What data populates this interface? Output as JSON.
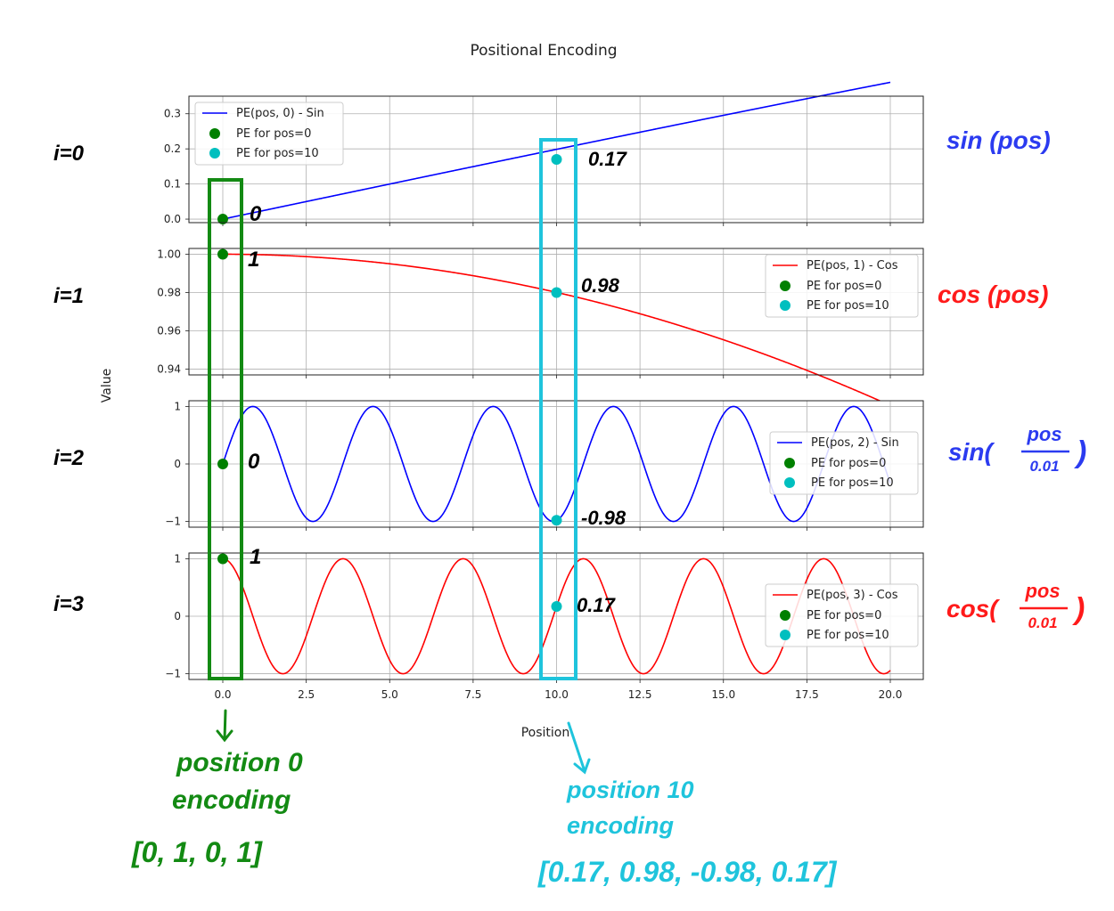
{
  "chart_data": {
    "type": "line",
    "title": "Positional Encoding",
    "xlabel": "Position",
    "ylabel": "Value",
    "grid": true,
    "x_range": [
      0,
      20
    ],
    "x_ticks": [
      "0.0",
      "2.5",
      "5.0",
      "7.5",
      "10.0",
      "12.5",
      "15.0",
      "17.5",
      "20.0"
    ],
    "marker_colors": {
      "pos0": "#008000",
      "pos10": "#00bfbf"
    },
    "panels": [
      {
        "series_name": "PE(pos, 0) - Sin",
        "function": "sin(pos/50)",
        "color": "#0000ff",
        "legend_position": "upper-left",
        "ylim": [
          -0.01,
          0.35
        ],
        "y_ticks": [
          "0.0",
          "0.1",
          "0.2",
          "0.3"
        ],
        "marker_labels": [
          "PE for pos=0",
          "PE for pos=10"
        ],
        "points": [
          {
            "x": 0,
            "y": 0
          },
          {
            "x": 10,
            "y": 0.17
          }
        ]
      },
      {
        "series_name": "PE(pos, 1) - Cos",
        "function": "cos(pos/50)",
        "color": "#ff0000",
        "legend_position": "upper-right",
        "ylim": [
          0.937,
          1.003
        ],
        "y_ticks": [
          "0.94",
          "0.96",
          "0.98",
          "1.00"
        ],
        "marker_labels": [
          "PE for pos=0",
          "PE for pos=10"
        ],
        "points": [
          {
            "x": 0,
            "y": 1
          },
          {
            "x": 10,
            "y": 0.98
          }
        ]
      },
      {
        "series_name": "PE(pos, 2) - Sin",
        "function": "sin(pos*1.745)",
        "color": "#0000ff",
        "legend_position": "right",
        "ylim": [
          -1.1,
          1.1
        ],
        "y_ticks": [
          "−1",
          "0",
          "1"
        ],
        "marker_labels": [
          "PE for pos=0",
          "PE for pos=10"
        ],
        "points": [
          {
            "x": 0,
            "y": 0
          },
          {
            "x": 10,
            "y": -0.98
          }
        ]
      },
      {
        "series_name": "PE(pos, 3) - Cos",
        "function": "cos(pos*1.745)",
        "color": "#ff0000",
        "legend_position": "right",
        "ylim": [
          -1.1,
          1.1
        ],
        "y_ticks": [
          "−1",
          "0",
          "1"
        ],
        "marker_labels": [
          "PE for pos=0",
          "PE for pos=10"
        ],
        "points": [
          {
            "x": 0,
            "y": 1
          },
          {
            "x": 10,
            "y": 0.17
          }
        ]
      }
    ]
  },
  "annotations": {
    "row_labels": [
      "i=0",
      "i=1",
      "i=2",
      "i=3"
    ],
    "point_labels": [
      {
        "pos0": "0",
        "pos10": "0.17"
      },
      {
        "pos0": "1",
        "pos10": "0.98"
      },
      {
        "pos0": "0",
        "pos10": "-0.98"
      },
      {
        "pos0": "1",
        "pos10": "0.17"
      }
    ],
    "formulas": [
      {
        "fn": "sin",
        "text": "sin (pos)",
        "color": "#2b3bf0",
        "fraction": false
      },
      {
        "fn": "cos",
        "text": "cos (pos)",
        "color": "#ff1a1a",
        "fraction": false
      },
      {
        "fn": "sin(",
        "num": "pos",
        "den": "0.01",
        "close": ")",
        "color": "#2b3bf0",
        "fraction": true
      },
      {
        "fn": "cos(",
        "num": "pos",
        "den": "0.01",
        "close": ")",
        "color": "#ff1a1a",
        "fraction": true
      }
    ],
    "pos0_note": {
      "line1": "position 0",
      "line2": "encoding",
      "vector": "[0, 1, 0, 1]",
      "color": "#138a13"
    },
    "pos10_note": {
      "line1": "position 10",
      "line2": "encoding",
      "vector": "[0.17, 0.98, -0.98, 0.17]",
      "color": "#1fc4dc"
    }
  }
}
